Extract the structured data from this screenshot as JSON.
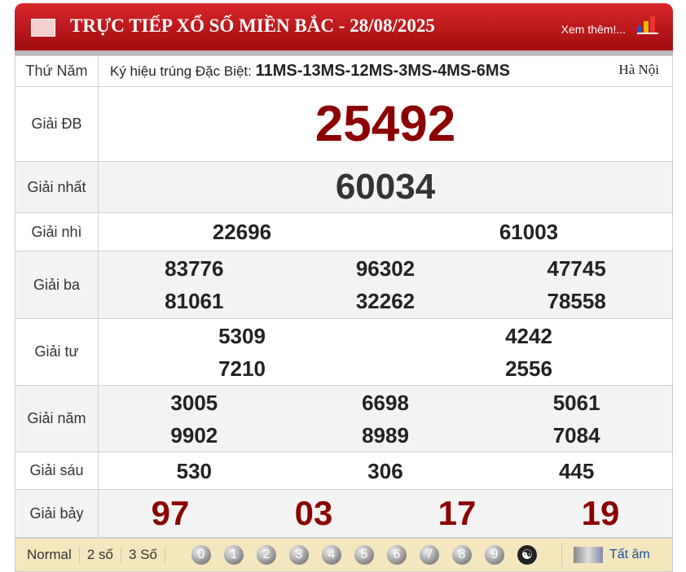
{
  "header": {
    "title": "TRỰC TIẾP XỔ SỐ MIỀN BẮC - 28/08/2025",
    "more": "Xem thêm!..."
  },
  "info": {
    "day": "Thứ Năm",
    "code_label": "Ký hiệu trúng Đặc Biệt:",
    "code": "11MS-13MS-12MS-3MS-4MS-6MS",
    "place": "Hà Nội"
  },
  "prizes": [
    {
      "label": "Giải ĐB",
      "rows": [
        [
          "25492"
        ]
      ]
    },
    {
      "label": "Giải nhất",
      "rows": [
        [
          "60034"
        ]
      ]
    },
    {
      "label": "Giải nhì",
      "rows": [
        [
          "22696",
          "61003"
        ]
      ]
    },
    {
      "label": "Giải ba",
      "rows": [
        [
          "83776",
          "96302",
          "47745"
        ],
        [
          "81061",
          "32262",
          "78558"
        ]
      ]
    },
    {
      "label": "Giải tư",
      "rows": [
        [
          "5309",
          "4242"
        ],
        [
          "7210",
          "2556"
        ]
      ]
    },
    {
      "label": "Giải năm",
      "rows": [
        [
          "3005",
          "6698",
          "5061"
        ],
        [
          "9902",
          "8989",
          "7084"
        ]
      ]
    },
    {
      "label": "Giải sáu",
      "rows": [
        [
          "530",
          "306",
          "445"
        ]
      ]
    },
    {
      "label": "Giải bảy",
      "rows": [
        [
          "97",
          "03",
          "17",
          "19"
        ]
      ]
    }
  ],
  "footer": {
    "modes": [
      "Normal",
      "2 số",
      "3 Số"
    ],
    "digits": [
      "0",
      "1",
      "2",
      "3",
      "4",
      "5",
      "6",
      "7",
      "8",
      "9"
    ],
    "mute": "Tất âm"
  },
  "colors": {
    "header": "#b5151a",
    "special": "#8b0000",
    "footer": "#f5e7bd"
  }
}
